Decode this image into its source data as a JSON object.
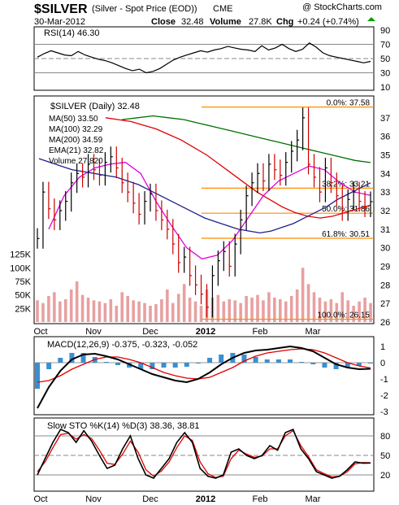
{
  "header": {
    "title_symbol": "$SILVER",
    "title_desc": "(Silver - Spot Price (EOD))",
    "exchange": "CME",
    "watermark": "@ StockCharts.com",
    "date": "30-Mar-2012",
    "close_label": "Close",
    "close_value": "32.48",
    "volume_label": "Volume",
    "volume_value": "27.8K",
    "chg_label": "Chg",
    "chg_value": "+0.24 (+0.74%)",
    "chg_color": "#00a000"
  },
  "colors": {
    "price_bars": "#000000",
    "down_bars": "#cc0000",
    "ma50": "#1f1f8f",
    "ma100": "#e00000",
    "ma200": "#007000",
    "ema21": "#e000e0",
    "fib": "#ff8c00",
    "volume": "#e8a0a0",
    "macd_hist": "#3a8fd0",
    "sto_k": "#000000",
    "sto_d": "#e00000"
  },
  "chart_data": [
    {
      "type": "line",
      "panel": "rsi",
      "legend": "RSI(14) 46.30",
      "ylim": [
        10,
        90
      ],
      "ticks": [
        "90",
        "70",
        "50",
        "30",
        "10"
      ],
      "y_grid": [
        70,
        50,
        30
      ],
      "series": [
        {
          "name": "RSI(14)",
          "values": [
            52,
            57,
            61,
            58,
            55,
            54,
            60,
            55,
            52,
            49,
            47,
            44,
            40,
            36,
            33,
            35,
            30,
            32,
            36,
            42,
            48,
            52,
            55,
            58,
            61,
            59,
            62,
            64,
            67,
            65,
            63,
            62,
            60,
            68,
            62,
            65,
            70,
            64,
            60,
            63,
            72,
            66,
            58,
            54,
            52,
            50,
            48,
            46,
            44,
            46
          ]
        }
      ]
    },
    {
      "type": "ohlc",
      "panel": "price",
      "legend": [
        "$SILVER (Daily) 32.48",
        "MA(50) 33.50",
        "MA(100) 32.29",
        "MA(200) 34.59",
        "EMA(21) 32.82",
        "Volume 27,820"
      ],
      "ylim": [
        26,
        38
      ],
      "ticks": [
        "37",
        "36",
        "35",
        "34",
        "33",
        "32",
        "31",
        "30",
        "29",
        "28",
        "27",
        "26"
      ],
      "volume_ticks": [
        "125K",
        "100K",
        "75K",
        "50K",
        "25K"
      ],
      "fib_levels": [
        {
          "label": "0.0%: 37.58",
          "value": 37.58
        },
        {
          "label": "38.2%: 33.21",
          "value": 33.21
        },
        {
          "label": "50.0%: 31.86",
          "value": 31.86
        },
        {
          "label": "61.8%: 30.51",
          "value": 30.51
        },
        {
          "label": "100.0%: 26.15",
          "value": 26.15
        }
      ],
      "x_labels": [
        "Oct",
        "Nov",
        "Dec",
        "2012",
        "Feb",
        "Mar"
      ],
      "close": [
        30.5,
        33.0,
        32.1,
        31.5,
        32.0,
        32.5,
        33.5,
        34.0,
        33.8,
        34.5,
        34.2,
        33.9,
        34.6,
        34.9,
        34.3,
        33.5,
        33.0,
        32.4,
        31.8,
        32.5,
        32.9,
        32.0,
        31.5,
        31.0,
        30.2,
        29.2,
        29.5,
        28.5,
        28.0,
        27.5,
        26.8,
        28.5,
        29.3,
        29.8,
        29.0,
        30.2,
        31.5,
        32.8,
        33.5,
        34.0,
        33.6,
        34.5,
        34.2,
        33.9,
        34.6,
        35.2,
        35.8,
        37.0,
        34.5,
        33.8,
        33.0,
        34.3,
        33.5,
        32.8,
        32.0,
        32.6,
        33.0,
        32.5,
        32.2,
        32.48
      ],
      "volume": [
        40,
        35,
        48,
        55,
        38,
        42,
        60,
        75,
        50,
        45,
        40,
        38,
        35,
        42,
        30,
        55,
        48,
        40,
        38,
        35,
        30,
        33,
        42,
        60,
        35,
        52,
        70,
        45,
        38,
        30,
        60,
        45,
        50,
        38,
        42,
        40,
        35,
        48,
        45,
        50,
        40,
        55,
        45,
        42,
        38,
        48,
        60,
        100,
        70,
        55,
        45,
        38,
        42,
        35,
        55,
        40,
        30,
        38,
        45,
        35
      ],
      "ma50": [
        34.8,
        34.6,
        34.4,
        34.2,
        34.1,
        34.0,
        33.9,
        33.8,
        33.6,
        33.4,
        33.1,
        32.8,
        32.5,
        32.2,
        31.9,
        31.6,
        31.4,
        31.2,
        31.0,
        30.9,
        30.8,
        30.9,
        31.1,
        31.3,
        31.6,
        31.9,
        32.2,
        32.6,
        32.9,
        33.2,
        33.5
      ],
      "ma100": [
        37.0,
        36.9,
        36.8,
        36.6,
        36.4,
        36.1,
        35.8,
        35.4,
        35.0,
        34.5,
        34.0,
        33.5,
        33.0,
        32.6,
        32.2,
        31.9,
        31.7,
        31.6,
        31.7,
        31.9,
        32.1,
        32.3
      ],
      "ma200": [
        36.9,
        37.0,
        37.1,
        37.0,
        36.9,
        36.7,
        36.5,
        36.3,
        36.1,
        35.9,
        35.7,
        35.5,
        35.3,
        35.1,
        34.9,
        34.7,
        34.59
      ],
      "ema21": [
        31.0,
        32.8,
        33.8,
        34.3,
        34.5,
        34.6,
        34.0,
        32.5,
        31.2,
        30.0,
        29.4,
        29.6,
        30.4,
        31.6,
        32.8,
        33.6,
        34.0,
        34.4,
        34.2,
        33.5,
        33.0,
        32.82
      ]
    },
    {
      "type": "line",
      "panel": "macd",
      "legend": "MACD(12,26,9) -0.375, -0.323, -0.052",
      "ylim": [
        -3,
        1.4
      ],
      "ticks": [
        "1",
        "0",
        "-1",
        "-2",
        "-3"
      ],
      "series": [
        {
          "name": "MACD",
          "values": [
            -2.8,
            -1.5,
            -0.5,
            0.2,
            0.5,
            0.55,
            0.4,
            0.2,
            -0.1,
            -0.4,
            -0.7,
            -0.9,
            -1.1,
            -1.2,
            -1.0,
            -0.6,
            -0.1,
            0.3,
            0.6,
            0.75,
            0.8,
            0.9,
            1.0,
            0.9,
            0.7,
            0.3,
            -0.1,
            -0.3,
            -0.4,
            -0.375
          ]
        },
        {
          "name": "Signal",
          "values": [
            -1.2,
            -1.1,
            -0.8,
            -0.4,
            -0.1,
            0.2,
            0.35,
            0.35,
            0.2,
            0.0,
            -0.3,
            -0.6,
            -0.8,
            -0.95,
            -1.0,
            -0.9,
            -0.6,
            -0.3,
            0.1,
            0.4,
            0.6,
            0.7,
            0.8,
            0.85,
            0.8,
            0.6,
            0.3,
            0.0,
            -0.2,
            -0.323
          ]
        }
      ]
    },
    {
      "type": "line",
      "panel": "stochastic",
      "legend": "Slow STO %K(14) %D(3) 38.36, 38.81",
      "ylim": [
        0,
        100
      ],
      "ticks": [
        "80",
        "50",
        "20"
      ],
      "series": [
        {
          "name": "%K",
          "values": [
            20,
            45,
            70,
            90,
            85,
            70,
            88,
            72,
            50,
            30,
            35,
            60,
            80,
            45,
            20,
            15,
            30,
            45,
            70,
            85,
            70,
            30,
            18,
            15,
            20,
            55,
            60,
            50,
            45,
            50,
            65,
            58,
            85,
            90,
            60,
            45,
            25,
            20,
            15,
            18,
            28,
            40,
            38,
            38.36
          ]
        },
        {
          "name": "%D",
          "values": [
            25,
            40,
            62,
            82,
            84,
            75,
            82,
            76,
            58,
            38,
            36,
            52,
            72,
            55,
            28,
            18,
            26,
            40,
            62,
            80,
            73,
            40,
            22,
            16,
            18,
            45,
            58,
            52,
            47,
            49,
            60,
            60,
            80,
            88,
            65,
            48,
            28,
            22,
            17,
            18,
            25,
            37,
            39,
            38.81
          ]
        }
      ]
    }
  ]
}
